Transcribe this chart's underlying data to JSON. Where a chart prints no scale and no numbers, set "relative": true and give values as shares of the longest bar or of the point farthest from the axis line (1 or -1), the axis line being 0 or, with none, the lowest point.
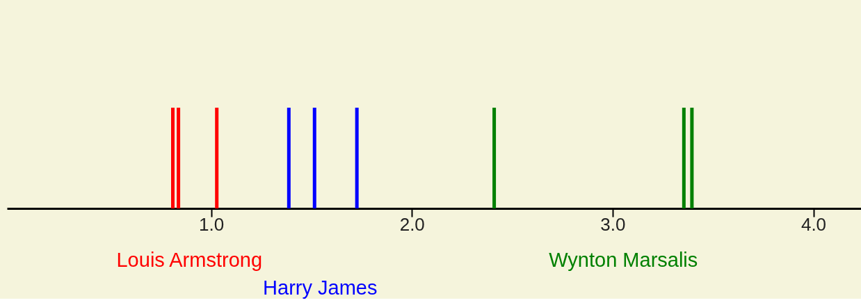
{
  "chart_data": {
    "type": "bar",
    "relative": true,
    "marker": "none",
    "legend": false,
    "grid": false,
    "xlim": [
      0,
      4.22
    ],
    "xticks": [
      {
        "value": 1,
        "label": "1.0"
      },
      {
        "value": 2,
        "label": "2.0"
      },
      {
        "value": 3,
        "label": "3.0"
      },
      {
        "value": 4,
        "label": "4.0"
      }
    ],
    "series": [
      {
        "name": "Louis Armstrong",
        "color": "#ff0000",
        "x": [
          0.809,
          0.837,
          1.028
        ],
        "values": [
          1,
          1,
          1
        ]
      },
      {
        "name": "Harry James",
        "color": "#0000ff",
        "x": [
          1.387,
          1.515,
          1.726
        ],
        "values": [
          1,
          1,
          1
        ]
      },
      {
        "name": "Wynton Marsalis",
        "color": "#008000",
        "x": [
          2.41,
          3.355,
          3.395
        ],
        "values": [
          1,
          1,
          1
        ]
      }
    ]
  }
}
